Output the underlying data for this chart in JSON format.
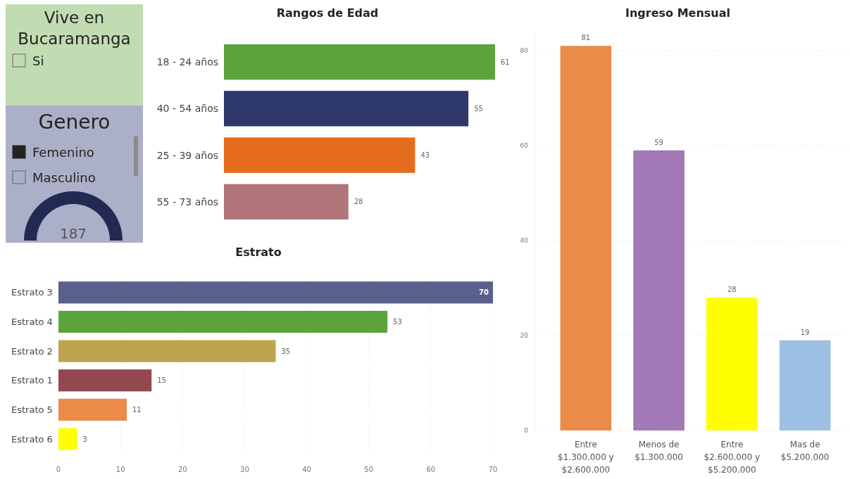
{
  "chart_data": [
    {
      "type": "other",
      "title": "Vive en Bucaramanga",
      "annotations": [
        "Si"
      ]
    },
    {
      "type": "other",
      "title": "Genero",
      "annotations": [
        "Femenino",
        "Masculino",
        "187"
      ]
    },
    {
      "type": "bar",
      "orientation": "horizontal",
      "title": "Rangos de Edad",
      "categories": [
        "18 - 24 años",
        "40 - 54 años",
        "25 - 39 años",
        "55 - 73 años"
      ],
      "values": [
        61,
        55,
        43,
        28
      ],
      "colors": [
        "#5ba33b",
        "#2e386b",
        "#e46c1c",
        "#b07679"
      ],
      "data_labels": true,
      "tick_labels": "y"
    },
    {
      "type": "bar",
      "orientation": "horizontal",
      "title": "Estrato",
      "categories": [
        "Estrato 3",
        "Estrato 4",
        "Estrato 2",
        "Estrato 1",
        "Estrato 5",
        "Estrato 6"
      ],
      "values": [
        70,
        53,
        35,
        15,
        11,
        3
      ],
      "colors": [
        "#58608c",
        "#5ba33b",
        "#bda54e",
        "#93474f",
        "#ea8b4a",
        "#ffff00"
      ],
      "xlim": [
        0,
        70
      ],
      "xticks": [
        0,
        10,
        20,
        30,
        40,
        50,
        60,
        70
      ],
      "grid": "x",
      "data_labels": true
    },
    {
      "type": "bar",
      "title": "Ingreso Mensual",
      "categories": [
        "Entre $1.300.000 y $2.600.000",
        "Menos de $1.300.000",
        "Entre $2.600.000 y $5.200.000",
        "Mas de $5.200.000"
      ],
      "values": [
        81,
        59,
        28,
        19
      ],
      "colors": [
        "#ea8b4a",
        "#a479b7",
        "#ffff00",
        "#9dc0e4"
      ],
      "ylim": [
        0,
        84
      ],
      "yticks": [
        0,
        20,
        40,
        60,
        80
      ],
      "grid": "y",
      "data_labels": true
    }
  ]
}
